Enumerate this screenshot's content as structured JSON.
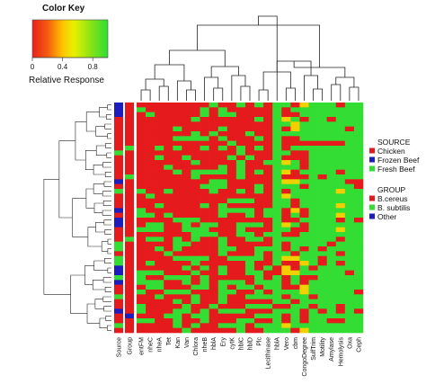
{
  "chart_data": {
    "type": "heatmap",
    "color_key": {
      "title": "Color Key",
      "xlabel": "Relative Response",
      "ticks": [
        "0",
        "0.4",
        "0.8"
      ],
      "colors": [
        "#e8211d",
        "#f45a10",
        "#ffc400",
        "#e8f000",
        "#7fe21a",
        "#2edc34"
      ]
    },
    "annotation_columns": [
      "Source",
      "Group"
    ],
    "columns": [
      "entFM",
      "nheC",
      "nheA",
      "Tet",
      "Kan",
      "Van",
      "Chlora",
      "nheB",
      "hblA",
      "Ery",
      "cytK",
      "hblC",
      "hblD",
      "Plc",
      "Lecithinase",
      "hblA",
      "Vero",
      "cbm",
      "CongoDegree",
      "SulfTrim",
      "Motility",
      "Amylase",
      "Hemolysis",
      "Oxa",
      "Ceph"
    ],
    "row_count": 48,
    "row_dendrogram": true,
    "col_dendrogram": true,
    "colors": {
      "low": "#e41a1c",
      "high": "#33dd33",
      "mid": "#f2d000",
      "chicken": "#e41a1c",
      "frozen_beef": "#1d1dbf",
      "fresh_beef": "#33dd33",
      "b_cereus": "#e41a1c",
      "b_subtilis": "#33dd33",
      "other": "#1d1dbf"
    },
    "legend": {
      "placement": "right",
      "groups": [
        {
          "title": "SOURCE",
          "items": [
            {
              "label": "Chicken",
              "color": "#e41a1c"
            },
            {
              "label": "Frozen Beef",
              "color": "#1d1dbf"
            },
            {
              "label": "Fresh Beef",
              "color": "#33dd33"
            }
          ]
        },
        {
          "title": "GROUP",
          "items": [
            {
              "label": "B.cereus",
              "color": "#e41a1c"
            },
            {
              "label": "B. subtilis",
              "color": "#33dd33"
            },
            {
              "label": "Other",
              "color": "#1d1dbf"
            }
          ]
        }
      ]
    }
  }
}
